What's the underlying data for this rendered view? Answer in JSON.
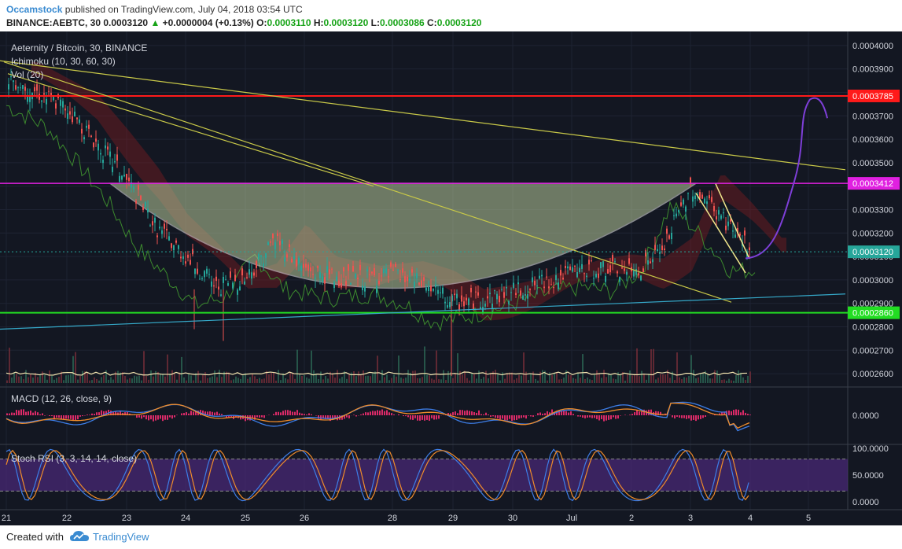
{
  "header": {
    "author": "Occamstock",
    "published": "published on TradingView.com, July 04, 2018 03:54 UTC",
    "symbol_line": "BINANCE:AEBTC, 30",
    "price": "0.0003120",
    "change": "+0.0000004 (+0.13%)",
    "o_label": "O:",
    "o_value": "0.0003110",
    "h_label": "H:",
    "h_value": "0.0003120",
    "l_label": "L:",
    "l_value": "0.0003086",
    "c_label": "C:",
    "c_value": "0.0003120"
  },
  "legend": {
    "title": "Aeternity / Bitcoin, 30, BINANCE",
    "ichimoku": "Ichimoku (10, 30, 60, 30)",
    "vol": "Vol (20)",
    "macd": "MACD (12, 26, close, 9)",
    "stoch": "Stoch RSI (3, 3, 14, 14, close)"
  },
  "footer": {
    "created_with": "Created with",
    "brand": "TradingView"
  },
  "colors": {
    "background": "#131722",
    "resistance": "#ff1a1a",
    "neckline": "#e020e0",
    "support": "#22dd22",
    "trendline": "#c8c848",
    "channel": "#35a8c8",
    "projection": "#7e3fd8",
    "cup_fill": "#b7c99a",
    "macd": "#3d7ee8",
    "signal": "#f08c2a",
    "histogram": "#ff2e74",
    "stoch_k": "#3d7ee8",
    "stoch_d": "#f08c2a",
    "stoch_band": "#4b2a7a"
  },
  "chart_data": {
    "type": "line",
    "xlabel": "",
    "ylabel": "",
    "x_ticks": [
      "21",
      "22",
      "23",
      "24",
      "25",
      "26",
      "28",
      "29",
      "30",
      "Jul",
      "2",
      "3",
      "4",
      "5"
    ],
    "price_axis": {
      "ticks": [
        "0.0004000",
        "0.0003900",
        "0.0003800",
        "0.0003700",
        "0.0003600",
        "0.0003500",
        "0.0003400",
        "0.0003300",
        "0.0003200",
        "0.0003100",
        "0.0003000",
        "0.0002900",
        "0.0002800",
        "0.0002700",
        "0.0002600"
      ],
      "range": [
        0.000255,
        0.000406
      ]
    },
    "price_labels": [
      {
        "value": "0.0003785",
        "color": "#ff1a1a"
      },
      {
        "value": "0.0003412",
        "color": "#e020e0"
      },
      {
        "value": "0.0003120",
        "color": "#26a69a"
      },
      {
        "value": "0.0002860",
        "color": "#22dd22"
      }
    ],
    "horizontal_levels": [
      0.0003785,
      0.0003412,
      0.000286
    ],
    "price_series": {
      "name": "AEBTC",
      "points": [
        [
          "21",
          0.000387
        ],
        [
          "21.5",
          0.00038
        ],
        [
          "22",
          0.000373
        ],
        [
          "22.5",
          0.000358
        ],
        [
          "23",
          0.000342
        ],
        [
          "23.5",
          0.000322
        ],
        [
          "24",
          0.00031
        ],
        [
          "24.5",
          0.000297
        ],
        [
          "25",
          0.000301
        ],
        [
          "25.5",
          0.000318
        ],
        [
          "26",
          0.000304
        ],
        [
          "27",
          0.0003
        ],
        [
          "28",
          0.000302
        ],
        [
          "28.5",
          0.000298
        ],
        [
          "29",
          0.00029
        ],
        [
          "29.5",
          0.000292
        ],
        [
          "30",
          0.000295
        ],
        [
          "Jul",
          0.000303
        ],
        [
          "1.5",
          0.000305
        ],
        [
          "2",
          0.000303
        ],
        [
          "2.5",
          0.000312
        ],
        [
          "3",
          0.00034
        ],
        [
          "3.5",
          0.000327
        ],
        [
          "4",
          0.000312
        ]
      ]
    },
    "macd_axis": {
      "ticks": [
        "0.0000"
      ]
    },
    "stoch_axis": {
      "ticks": [
        "100.0000",
        "50.0000",
        "0.0000"
      ],
      "range": [
        0,
        100
      ]
    }
  }
}
